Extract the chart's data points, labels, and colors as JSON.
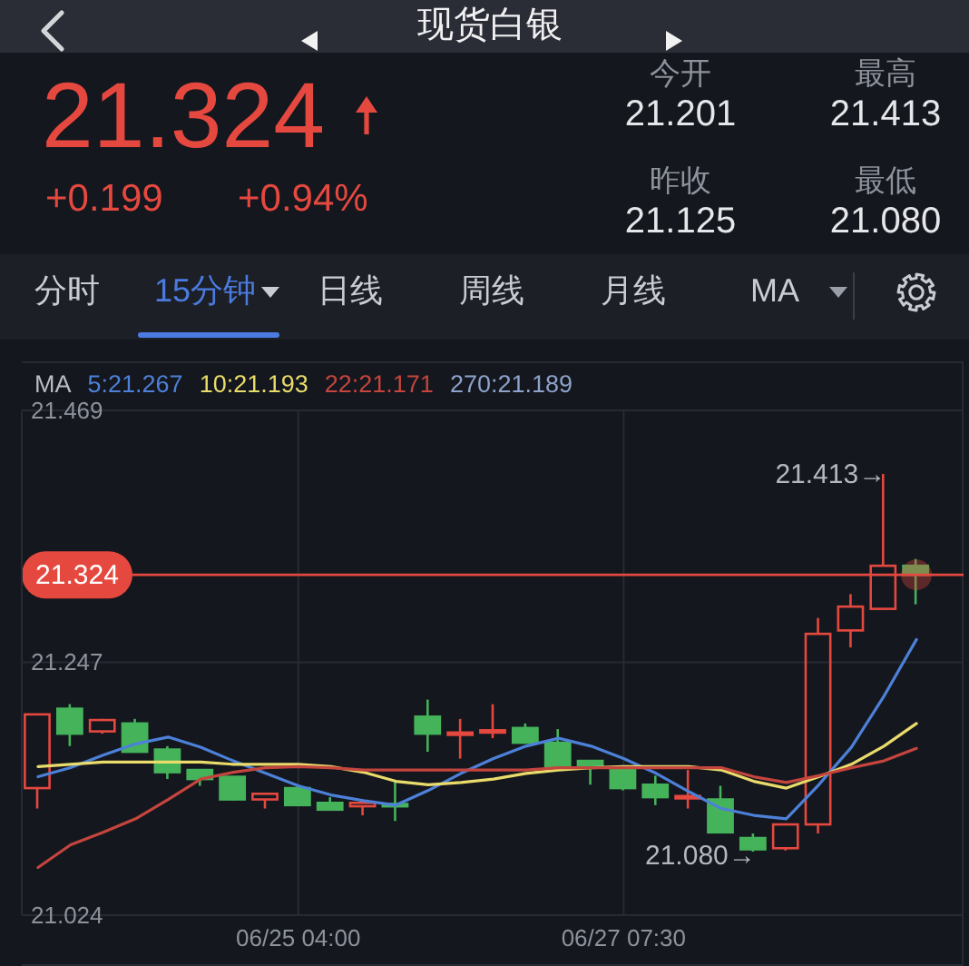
{
  "chart_data": {
    "type": "candlestick",
    "title": "现货白银",
    "categories": [
      null,
      null,
      null,
      null,
      null,
      null,
      null,
      null,
      "06/25 04:00",
      null,
      null,
      null,
      null,
      null,
      null,
      null,
      null,
      null,
      "06/27 07:30",
      null,
      null,
      null,
      null,
      null,
      null,
      null,
      null,
      null
    ],
    "ohlc": [
      [
        21.136,
        21.201,
        21.118,
        21.201
      ],
      [
        21.206,
        21.21,
        21.173,
        21.184
      ],
      [
        21.186,
        21.197,
        21.184,
        21.196
      ],
      [
        21.193,
        21.197,
        21.168,
        21.168
      ],
      [
        21.17,
        21.173,
        21.144,
        21.15
      ],
      [
        21.152,
        21.152,
        21.138,
        21.144
      ],
      [
        21.146,
        21.146,
        21.125,
        21.126
      ],
      [
        21.126,
        21.131,
        21.118,
        21.131
      ],
      [
        21.136,
        21.139,
        21.121,
        21.121
      ],
      [
        21.123,
        21.128,
        21.117,
        21.117
      ],
      [
        21.12,
        21.123,
        21.112,
        21.123
      ],
      [
        21.122,
        21.142,
        21.107,
        21.121
      ],
      [
        21.199,
        21.214,
        21.168,
        21.184
      ],
      [
        21.183,
        21.197,
        21.162,
        21.185
      ],
      [
        21.185,
        21.21,
        21.18,
        21.187
      ],
      [
        21.189,
        21.193,
        21.176,
        21.176
      ],
      [
        21.176,
        21.188,
        21.155,
        21.155
      ],
      [
        21.16,
        21.16,
        21.139,
        21.154
      ],
      [
        21.152,
        21.152,
        21.134,
        21.136
      ],
      [
        21.139,
        21.147,
        21.121,
        21.128
      ],
      [
        21.127,
        21.152,
        21.118,
        21.129
      ],
      [
        21.126,
        21.138,
        21.097,
        21.097
      ],
      [
        21.092,
        21.096,
        21.08,
        21.082
      ],
      [
        21.083,
        21.104,
        21.081,
        21.104
      ],
      [
        21.104,
        21.286,
        21.096,
        21.272
      ],
      [
        21.275,
        21.307,
        21.26,
        21.296
      ],
      [
        21.294,
        21.413,
        21.294,
        21.332
      ],
      [
        21.332,
        21.338,
        21.298,
        21.324
      ]
    ],
    "colors": [
      "#e5483f",
      "#45b35a",
      "#e5483f",
      "#45b35a",
      "#45b35a",
      "#45b35a",
      "#45b35a",
      "#e5483f",
      "#45b35a",
      "#45b35a",
      "#e5483f",
      "#45b35a",
      "#45b35a",
      "#e5483f",
      "#e5483f",
      "#45b35a",
      "#45b35a",
      "#45b35a",
      "#45b35a",
      "#45b35a",
      "#e5483f",
      "#45b35a",
      "#45b35a",
      "#e5483f",
      "#e5483f",
      "#e5483f",
      "#e5483f",
      "#45b35a"
    ],
    "series": [
      {
        "name": "5:21.267",
        "type": "line",
        "color": "#4d80d8",
        "values": [
          21.146,
          21.154,
          21.165,
          21.175,
          21.181,
          21.172,
          21.16,
          21.149,
          21.138,
          21.13,
          21.125,
          21.121,
          21.134,
          21.149,
          21.162,
          21.173,
          21.18,
          21.173,
          21.162,
          21.149,
          21.133,
          21.118,
          21.112,
          21.109,
          21.139,
          21.172,
          21.217,
          21.267
        ]
      },
      {
        "name": "10:21.193",
        "type": "line",
        "color": "#eadc6a",
        "values": [
          21.155,
          21.157,
          21.159,
          21.159,
          21.159,
          21.159,
          21.157,
          21.157,
          21.157,
          21.155,
          21.15,
          21.142,
          21.139,
          21.141,
          21.144,
          21.149,
          21.152,
          21.154,
          21.155,
          21.155,
          21.155,
          21.152,
          21.142,
          21.136,
          21.146,
          21.157,
          21.173,
          21.193
        ]
      },
      {
        "name": "22:21.171",
        "type": "line",
        "color": "#c4453d",
        "values": [
          21.066,
          21.086,
          21.097,
          21.109,
          21.126,
          21.144,
          21.15,
          21.154,
          21.155,
          21.154,
          21.152,
          21.152,
          21.152,
          21.152,
          21.152,
          21.152,
          21.154,
          21.154,
          21.154,
          21.154,
          21.154,
          21.154,
          21.146,
          21.141,
          21.147,
          21.154,
          21.16,
          21.171
        ]
      }
    ],
    "legend_title": "MA",
    "legend": "top left",
    "ylim": [
      21.024,
      21.469
    ],
    "yticks": [
      21.024,
      21.247,
      21.469
    ],
    "grid": true,
    "ref_lines": [
      {
        "axis": "y",
        "value": 21.324,
        "label": "21.324",
        "color": "#e5483f"
      }
    ],
    "annotations": [
      "21.324",
      "+0.199",
      "+0.94%",
      "今开",
      "21.201",
      "最高",
      "21.413",
      "昨收",
      "21.125",
      "最低",
      "21.080",
      "分时",
      "15分钟",
      "日线",
      "周线",
      "月线",
      "MA",
      "21.413→",
      "21.080→",
      "270:21.189"
    ]
  }
}
